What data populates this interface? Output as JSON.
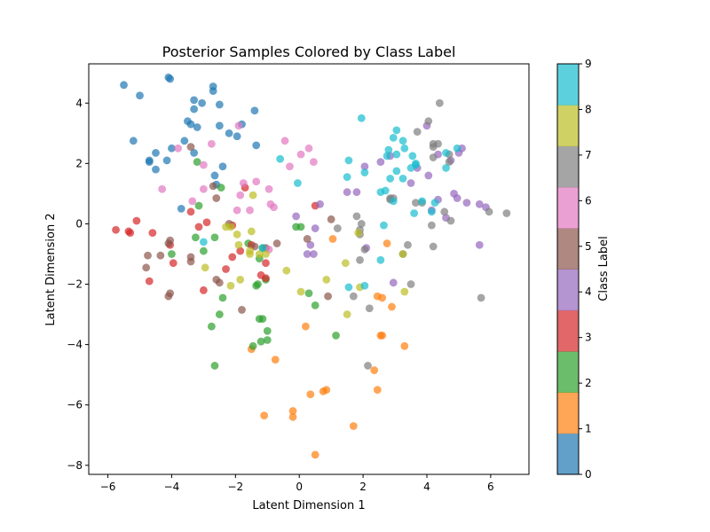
{
  "chart_data": {
    "type": "scatter",
    "title": "Posterior Samples Colored by Class Label",
    "xlabel": "Latent Dimension 1",
    "ylabel": "Latent Dimension 2",
    "xlim": [
      -6.6,
      7.2
    ],
    "ylim": [
      -8.3,
      5.3
    ],
    "xticks": [
      -6,
      -4,
      -2,
      0,
      2,
      4,
      6
    ],
    "yticks": [
      -8,
      -6,
      -4,
      -2,
      0,
      2,
      4
    ],
    "grid": false,
    "colorbar": {
      "label": "Class Label",
      "min": 0,
      "max": 9,
      "ticks": [
        0,
        1,
        2,
        3,
        4,
        5,
        6,
        7,
        8,
        9
      ],
      "colormap": "tab10",
      "colors": [
        "#1f77b4",
        "#ff7f0e",
        "#2ca02c",
        "#d62728",
        "#9467bd",
        "#8c564b",
        "#e377c2",
        "#7f7f7f",
        "#bcbd22",
        "#17becf"
      ]
    },
    "series": [
      {
        "class": 0,
        "points": [
          [
            -5.5,
            4.6
          ],
          [
            -5.0,
            4.25
          ],
          [
            -4.1,
            4.85
          ],
          [
            -4.05,
            4.8
          ],
          [
            -2.7,
            4.55
          ],
          [
            -2.7,
            4.4
          ],
          [
            -3.3,
            4.1
          ],
          [
            -3.05,
            4.0
          ],
          [
            -2.5,
            3.95
          ],
          [
            -3.3,
            3.8
          ],
          [
            -1.4,
            3.75
          ],
          [
            -3.5,
            3.4
          ],
          [
            -3.4,
            3.3
          ],
          [
            -3.2,
            3.2
          ],
          [
            -2.5,
            3.25
          ],
          [
            -1.8,
            3.3
          ],
          [
            -1.95,
            2.9
          ],
          [
            -2.2,
            3.0
          ],
          [
            -5.2,
            2.75
          ],
          [
            -3.6,
            2.75
          ],
          [
            -1.35,
            2.6
          ],
          [
            -4.0,
            2.5
          ],
          [
            -3.3,
            2.35
          ],
          [
            -4.5,
            2.35
          ],
          [
            -4.7,
            2.1
          ],
          [
            -4.15,
            2.1
          ],
          [
            -4.7,
            2.05
          ],
          [
            -2.4,
            1.9
          ],
          [
            -4.5,
            1.8
          ],
          [
            -2.65,
            1.6
          ],
          [
            -2.6,
            1.3
          ],
          [
            -3.7,
            0.5
          ]
        ]
      },
      {
        "class": 1,
        "points": [
          [
            1.05,
            -0.5
          ],
          [
            2.75,
            -0.65
          ],
          [
            2.45,
            -2.4
          ],
          [
            2.6,
            -2.45
          ],
          [
            2.9,
            -2.75
          ],
          [
            0.2,
            -3.4
          ],
          [
            2.6,
            -3.7
          ],
          [
            2.55,
            -3.7
          ],
          [
            3.3,
            -4.05
          ],
          [
            -1.5,
            -4.15
          ],
          [
            -0.75,
            -4.5
          ],
          [
            2.35,
            -4.85
          ],
          [
            0.85,
            -5.5
          ],
          [
            0.75,
            -5.55
          ],
          [
            0.35,
            -5.65
          ],
          [
            2.45,
            -5.5
          ],
          [
            -0.2,
            -6.2
          ],
          [
            -0.2,
            -6.4
          ],
          [
            -1.1,
            -6.35
          ],
          [
            1.7,
            -6.7
          ],
          [
            0.5,
            -7.65
          ]
        ]
      },
      {
        "class": 2,
        "points": [
          [
            -3.2,
            2.05
          ],
          [
            -2.45,
            1.2
          ],
          [
            -0.1,
            -0.1
          ],
          [
            0.05,
            -0.1
          ],
          [
            -1.6,
            -0.65
          ],
          [
            -1.15,
            -0.8
          ],
          [
            -3.0,
            -0.9
          ],
          [
            -1.25,
            -1.15
          ],
          [
            -1.3,
            -2.0
          ],
          [
            -1.05,
            -1.85
          ],
          [
            -3.25,
            -0.45
          ],
          [
            -2.65,
            -0.45
          ],
          [
            0.3,
            -2.3
          ],
          [
            -1.35,
            -2.05
          ],
          [
            -2.4,
            -2.45
          ],
          [
            0.5,
            -2.7
          ],
          [
            -2.5,
            -3.0
          ],
          [
            -1.25,
            -3.15
          ],
          [
            -1.15,
            -3.15
          ],
          [
            -2.75,
            -3.4
          ],
          [
            -1.0,
            -3.55
          ],
          [
            1.15,
            -3.7
          ],
          [
            -1.45,
            -4.05
          ],
          [
            -1.2,
            -3.9
          ],
          [
            -1.0,
            -3.85
          ],
          [
            -2.65,
            -4.7
          ],
          [
            -4.0,
            -1.0
          ],
          [
            -3.15,
            0.6
          ]
        ]
      },
      {
        "class": 3,
        "points": [
          [
            -5.75,
            -0.2
          ],
          [
            -5.35,
            -0.25
          ],
          [
            -5.3,
            -0.3
          ],
          [
            -5.1,
            0.1
          ],
          [
            -4.6,
            -0.3
          ],
          [
            -4.05,
            -0.7
          ],
          [
            -3.95,
            -1.3
          ],
          [
            -3.4,
            0.4
          ],
          [
            -3.15,
            -0.1
          ],
          [
            -2.9,
            0.05
          ],
          [
            -2.3,
            -1.5
          ],
          [
            -2.1,
            -0.05
          ],
          [
            -2.1,
            -1.1
          ],
          [
            -1.85,
            -0.9
          ],
          [
            -1.7,
            1.2
          ],
          [
            -1.5,
            -0.7
          ],
          [
            -1.2,
            -1.7
          ],
          [
            -1.05,
            -1.3
          ],
          [
            -1.05,
            -1.8
          ],
          [
            -3.0,
            -2.2
          ],
          [
            -4.7,
            -1.9
          ],
          [
            0.5,
            0.6
          ]
        ]
      },
      {
        "class": 4,
        "points": [
          [
            4.35,
            2.3
          ],
          [
            4.0,
            3.25
          ],
          [
            3.5,
            1.35
          ],
          [
            3.7,
            1.85
          ],
          [
            4.05,
            1.6
          ],
          [
            5.1,
            2.5
          ],
          [
            5.0,
            2.35
          ],
          [
            4.75,
            2.1
          ],
          [
            4.85,
            1.0
          ],
          [
            4.95,
            0.85
          ],
          [
            5.25,
            0.7
          ],
          [
            5.65,
            0.65
          ],
          [
            5.85,
            0.55
          ],
          [
            5.65,
            -0.7
          ],
          [
            4.35,
            0.8
          ],
          [
            4.15,
            0.45
          ],
          [
            4.6,
            0.2
          ],
          [
            2.55,
            2.05
          ],
          [
            2.85,
            2.25
          ],
          [
            2.05,
            1.9
          ],
          [
            1.5,
            1.05
          ],
          [
            1.8,
            1.05
          ],
          [
            2.1,
            -0.8
          ],
          [
            2.95,
            -1.95
          ],
          [
            0.45,
            -1.0
          ],
          [
            0.5,
            -0.15
          ],
          [
            0.35,
            -0.7
          ],
          [
            0.65,
            0.65
          ],
          [
            0.25,
            -1.0
          ],
          [
            -0.1,
            0.25
          ]
        ]
      },
      {
        "class": 5,
        "points": [
          [
            -2.5,
            -1.95
          ],
          [
            -3.4,
            -1.1
          ],
          [
            -3.4,
            -1.25
          ],
          [
            -4.05,
            -0.55
          ],
          [
            -4.1,
            -0.65
          ],
          [
            -4.35,
            -1.05
          ],
          [
            -4.75,
            -1.05
          ],
          [
            -4.8,
            -1.45
          ],
          [
            -4.05,
            -2.3
          ],
          [
            -4.1,
            -2.4
          ],
          [
            -3.4,
            2.55
          ],
          [
            -2.7,
            1.25
          ],
          [
            -2.6,
            0.85
          ],
          [
            -2.6,
            -1.85
          ],
          [
            -1.8,
            -2.85
          ],
          [
            -1.4,
            -0.75
          ],
          [
            -1.05,
            -0.8
          ],
          [
            -0.7,
            -0.65
          ],
          [
            -2.2,
            0.0
          ],
          [
            1.0,
            0.15
          ],
          [
            0.9,
            -2.4
          ],
          [
            0.25,
            -0.5
          ]
        ]
      },
      {
        "class": 6,
        "points": [
          [
            -1.9,
            3.25
          ],
          [
            -2.75,
            2.65
          ],
          [
            -0.45,
            2.75
          ],
          [
            -3.0,
            1.95
          ],
          [
            -0.3,
            1.9
          ],
          [
            0.05,
            2.3
          ],
          [
            0.45,
            2.05
          ],
          [
            0.3,
            2.5
          ],
          [
            -4.3,
            1.15
          ],
          [
            -3.0,
            1.15
          ],
          [
            -1.75,
            1.35
          ],
          [
            -1.35,
            1.4
          ],
          [
            -0.95,
            1.15
          ],
          [
            -0.9,
            0.65
          ],
          [
            -0.8,
            0.55
          ],
          [
            -1.85,
            0.95
          ],
          [
            -1.95,
            0.45
          ],
          [
            -1.55,
            0.45
          ],
          [
            -3.35,
            0.75
          ],
          [
            -3.8,
            2.5
          ],
          [
            -0.95,
            -0.85
          ]
        ]
      },
      {
        "class": 7,
        "points": [
          [
            4.4,
            4.0
          ],
          [
            4.05,
            3.4
          ],
          [
            3.7,
            3.05
          ],
          [
            4.2,
            2.55
          ],
          [
            4.2,
            2.65
          ],
          [
            4.35,
            2.65
          ],
          [
            4.2,
            2.2
          ],
          [
            4.7,
            2.3
          ],
          [
            4.7,
            2.05
          ],
          [
            3.85,
            0.7
          ],
          [
            4.15,
            -0.05
          ],
          [
            4.2,
            -0.75
          ],
          [
            3.65,
            0.7
          ],
          [
            4.55,
            0.4
          ],
          [
            4.75,
            0.1
          ],
          [
            3.25,
            -1.0
          ],
          [
            3.4,
            -0.7
          ],
          [
            3.5,
            -2.0
          ],
          [
            2.85,
            0.85
          ],
          [
            2.95,
            0.85
          ],
          [
            2.85,
            0.8
          ],
          [
            1.8,
            0.25
          ],
          [
            1.95,
            0.0
          ],
          [
            1.9,
            -0.2
          ],
          [
            1.9,
            -0.35
          ],
          [
            1.9,
            -1.2
          ],
          [
            1.7,
            -2.4
          ],
          [
            2.2,
            -2.8
          ],
          [
            2.15,
            -4.7
          ],
          [
            5.7,
            -2.45
          ],
          [
            6.5,
            0.35
          ],
          [
            5.95,
            0.4
          ],
          [
            2.05,
            -0.85
          ],
          [
            1.2,
            -0.15
          ]
        ]
      },
      {
        "class": 8,
        "points": [
          [
            -1.45,
            0.95
          ],
          [
            -2.15,
            -0.1
          ],
          [
            -2.3,
            -0.1
          ],
          [
            -1.5,
            -0.25
          ],
          [
            -1.95,
            -0.35
          ],
          [
            -1.9,
            -0.7
          ],
          [
            -1.55,
            -0.9
          ],
          [
            -1.55,
            -1.0
          ],
          [
            -1.25,
            -1.0
          ],
          [
            -1.05,
            -1.0
          ],
          [
            -2.95,
            -1.45
          ],
          [
            -2.15,
            -2.05
          ],
          [
            -1.85,
            -1.85
          ],
          [
            -0.4,
            -1.55
          ],
          [
            0.05,
            -2.25
          ],
          [
            0.85,
            -1.85
          ],
          [
            1.45,
            -1.3
          ],
          [
            1.9,
            -2.1
          ],
          [
            1.5,
            -3.0
          ],
          [
            3.3,
            -2.25
          ],
          [
            3.25,
            -1.0
          ],
          [
            1.85,
            -0.3
          ]
        ]
      },
      {
        "class": 9,
        "points": [
          [
            1.95,
            3.5
          ],
          [
            3.05,
            3.1
          ],
          [
            2.95,
            2.85
          ],
          [
            3.25,
            2.75
          ],
          [
            3.3,
            2.5
          ],
          [
            3.55,
            2.25
          ],
          [
            3.65,
            2.0
          ],
          [
            3.65,
            1.95
          ],
          [
            3.5,
            1.85
          ],
          [
            2.8,
            2.45
          ],
          [
            2.75,
            2.25
          ],
          [
            3.05,
            2.3
          ],
          [
            3.25,
            1.5
          ],
          [
            3.05,
            1.75
          ],
          [
            2.85,
            1.5
          ],
          [
            1.55,
            2.1
          ],
          [
            2.05,
            1.7
          ],
          [
            1.5,
            1.55
          ],
          [
            2.55,
            1.05
          ],
          [
            2.7,
            1.1
          ],
          [
            2.95,
            0.75
          ],
          [
            3.85,
            0.75
          ],
          [
            4.25,
            0.7
          ],
          [
            4.15,
            0.4
          ],
          [
            3.6,
            0.35
          ],
          [
            4.6,
            1.85
          ],
          [
            4.6,
            2.35
          ],
          [
            4.95,
            2.5
          ],
          [
            2.65,
            -0.05
          ],
          [
            2.55,
            -1.2
          ],
          [
            1.55,
            -2.1
          ],
          [
            2.05,
            -2.05
          ],
          [
            -0.6,
            2.15
          ],
          [
            -0.05,
            1.35
          ],
          [
            -3.0,
            -0.6
          ],
          [
            -1.15,
            -0.8
          ]
        ]
      }
    ]
  }
}
